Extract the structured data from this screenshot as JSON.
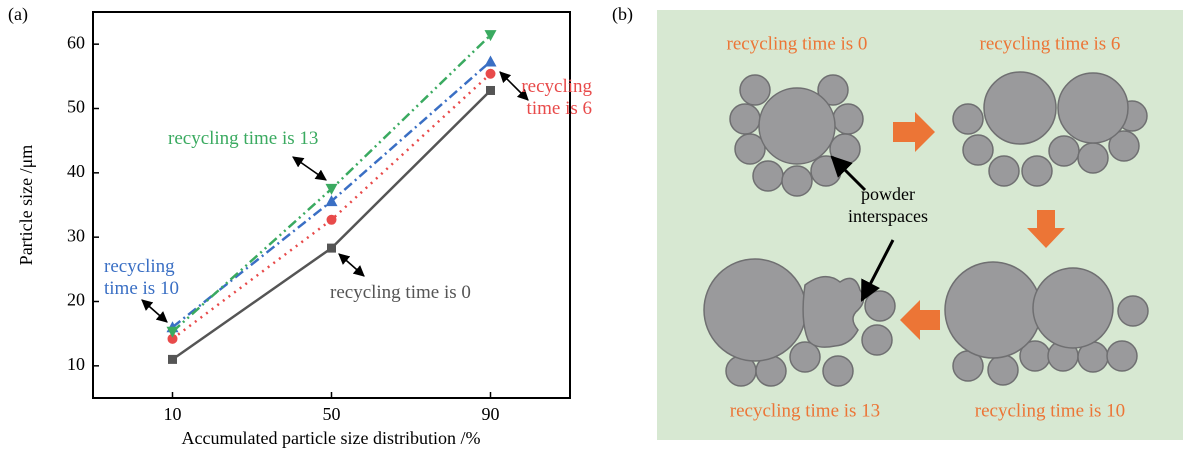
{
  "panel_labels": [
    "(a)",
    "(b)"
  ],
  "chart_data": {
    "type": "line",
    "x_label": "Accumulated particle size distribution /%",
    "y_label": "Particle size /μm",
    "x": [
      10,
      50,
      90
    ],
    "xlim": [
      -10,
      110
    ],
    "xticks": [
      10,
      50,
      90
    ],
    "ylim": [
      5,
      65
    ],
    "yticks": [
      10,
      20,
      30,
      40,
      50,
      60
    ],
    "series": [
      {
        "name": "recycling time is 0",
        "color": "#555555",
        "marker": "square",
        "linestyle": "solid",
        "values": [
          11,
          28.3,
          52.8
        ]
      },
      {
        "name": "recycling time is 6",
        "color": "#e84a4a",
        "marker": "circle",
        "linestyle": "dotted",
        "values": [
          14.2,
          32.7,
          55.4
        ]
      },
      {
        "name": "recycling time is 10",
        "color": "#3a6fc4",
        "marker": "triangle-up",
        "linestyle": "dashdot",
        "values": [
          16,
          35.6,
          57.3
        ]
      },
      {
        "name": "recycling time is 13",
        "color": "#3aaa60",
        "marker": "triangle-down",
        "linestyle": "dashdotdot",
        "values": [
          15.3,
          37.5,
          61.4
        ]
      }
    ]
  },
  "diagram": {
    "stages": [
      "recycling time is 0",
      "recycling time is 6",
      "recycling time is 10",
      "recycling time is 13"
    ],
    "annotation": "powder interspaces"
  }
}
